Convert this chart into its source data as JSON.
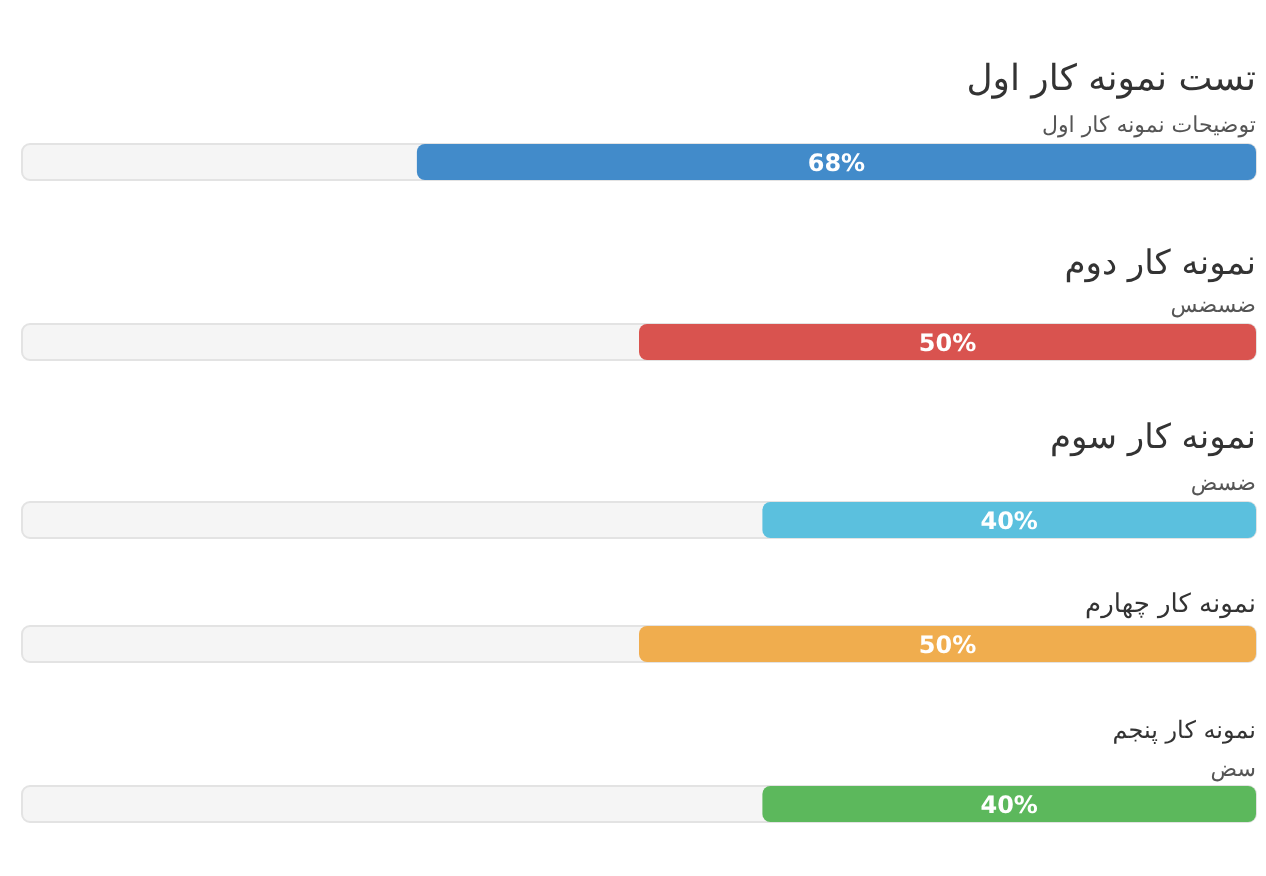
{
  "chart_data": {
    "type": "bar",
    "orientation": "horizontal",
    "categories": [
      "تست نمونه کار اول",
      "نمونه کار دوم",
      "نمونه کار سوم",
      "نمونه کار چهارم",
      "نمونه کار پنجم"
    ],
    "values": [
      68,
      50,
      40,
      50,
      40
    ],
    "colors": [
      "#428bca",
      "#d9534f",
      "#5bc0de",
      "#f0ad4e",
      "#5cb85c"
    ],
    "value_labels": [
      "68%",
      "50%",
      "40%",
      "50%",
      "40%"
    ],
    "xlim": [
      100,
      0
    ],
    "annotations": [
      "توضیحات نمونه کار اول",
      "ضسضس",
      "ضسض",
      "سض"
    ]
  }
}
